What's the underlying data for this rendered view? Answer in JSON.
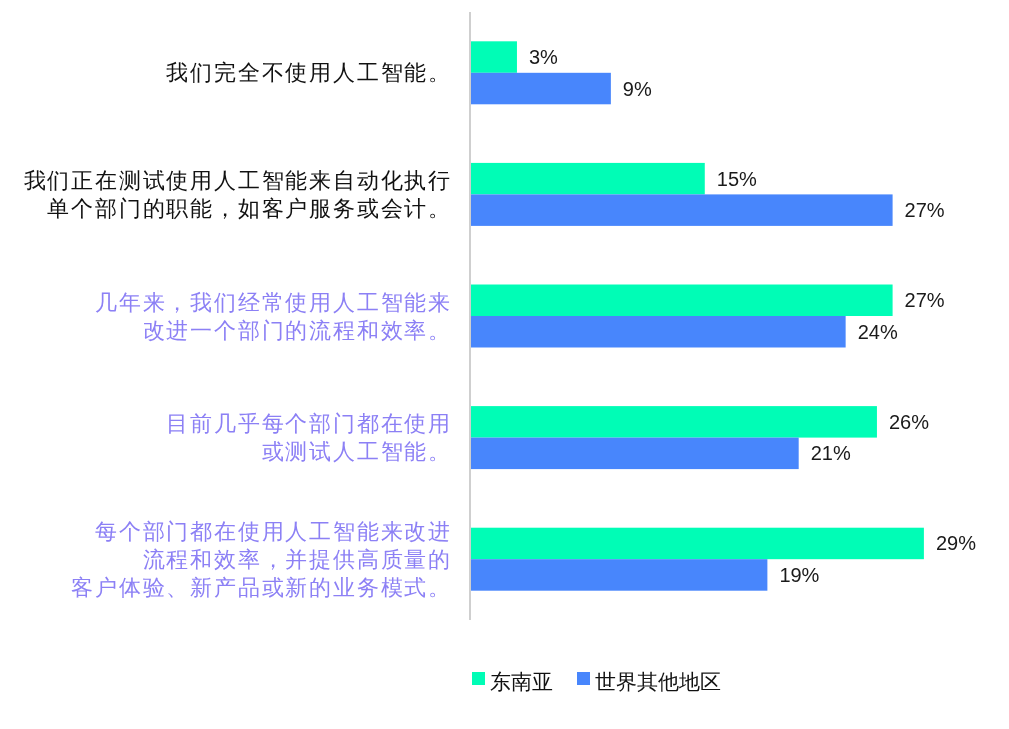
{
  "chart_data": {
    "type": "bar",
    "orientation": "horizontal",
    "categories": [
      "我们完全不使用人工智能。",
      "我们正在测试使用人工智能来自动化执行单个部门的职能，如客户服务或会计。",
      "几年来，我们经常使用人工智能来改进一个部门的流程和效率。",
      "目前几乎每个部门都在使用或测试人工智能。",
      "每个部门都在使用人工智能来改进流程和效率，并提供高质量的客户体验、新产品或新的业务模式。"
    ],
    "series": [
      {
        "name": "东南亚",
        "color": "#00fdb6",
        "values": [
          3,
          15,
          27,
          26,
          29
        ],
        "value_labels": [
          "3%",
          "15%",
          "27%",
          "26%",
          "29%"
        ]
      },
      {
        "name": "世界其他地区",
        "color": "#4886fc",
        "values": [
          9,
          27,
          24,
          21,
          19
        ],
        "value_labels": [
          "9%",
          "27%",
          "24%",
          "21%",
          "19%"
        ]
      }
    ],
    "tick_labels": "y",
    "legend": "bottom"
  }
}
